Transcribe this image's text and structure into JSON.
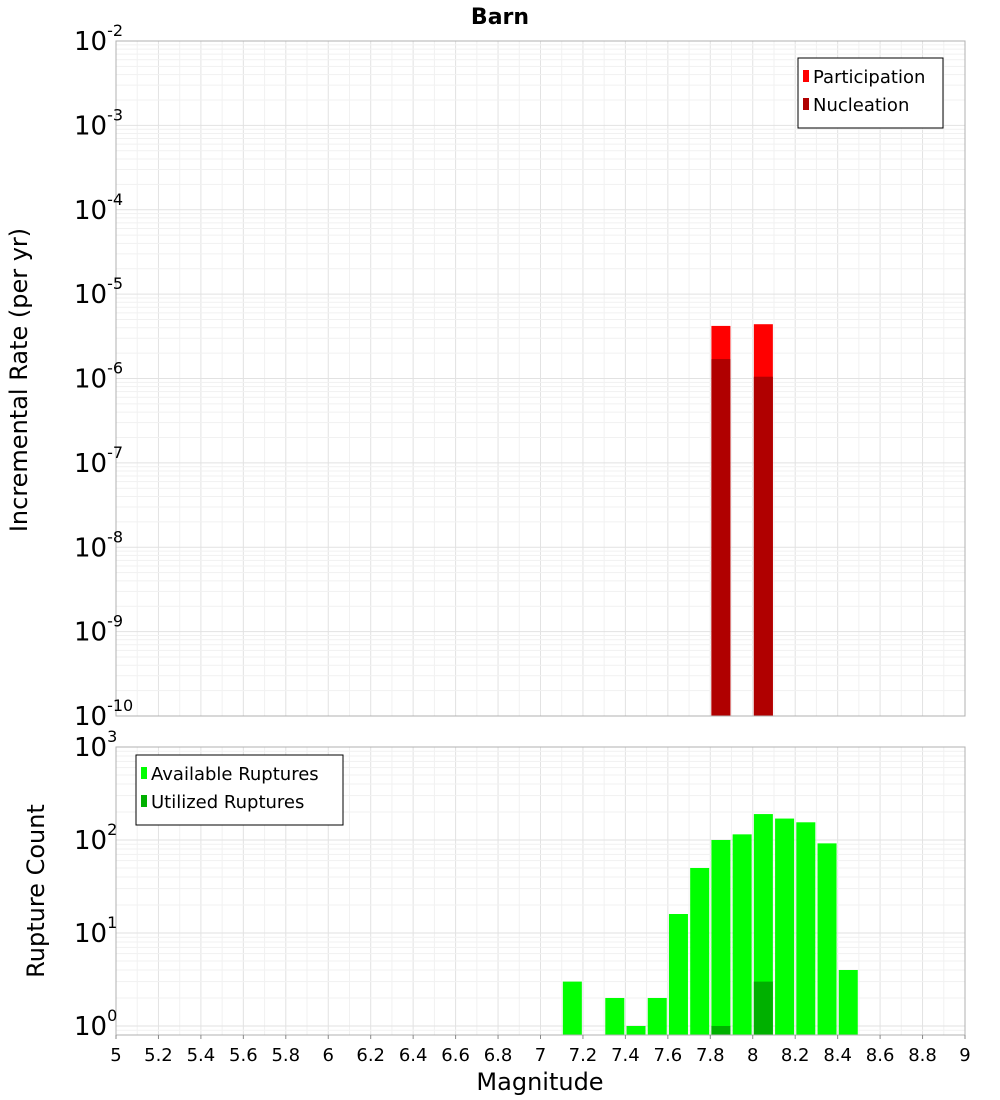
{
  "chart_data": [
    {
      "type": "bar",
      "title": "Barn",
      "xlabel": "",
      "ylabel": "Incremental Rate (per yr)",
      "yscale": "log",
      "ylim": [
        1e-10,
        0.01
      ],
      "xlim": [
        5,
        9
      ],
      "grid": true,
      "legend_position": "top-right",
      "y_ticks": [
        {
          "base": "10",
          "exp": "-10",
          "value": 1e-10
        },
        {
          "base": "10",
          "exp": "-9",
          "value": 1e-09
        },
        {
          "base": "10",
          "exp": "-8",
          "value": 1e-08
        },
        {
          "base": "10",
          "exp": "-7",
          "value": 1e-07
        },
        {
          "base": "10",
          "exp": "-6",
          "value": 1e-06
        },
        {
          "base": "10",
          "exp": "-5",
          "value": 1e-05
        },
        {
          "base": "10",
          "exp": "-4",
          "value": 0.0001
        },
        {
          "base": "10",
          "exp": "-3",
          "value": 0.001
        },
        {
          "base": "10",
          "exp": "-2",
          "value": 0.01
        }
      ],
      "series": [
        {
          "name": "Participation",
          "color": "#ff0000",
          "x": [
            7.85,
            8.05
          ],
          "values": [
            4.2e-06,
            4.4e-06
          ]
        },
        {
          "name": "Nucleation",
          "color": "#b00000",
          "x": [
            7.85,
            8.05
          ],
          "values": [
            1.7e-06,
            1.05e-06
          ]
        }
      ]
    },
    {
      "type": "bar",
      "title": "",
      "xlabel": "Magnitude",
      "ylabel": "Rupture Count",
      "yscale": "log",
      "ylim": [
        0.8,
        1000
      ],
      "xlim": [
        5,
        9
      ],
      "grid": true,
      "legend_position": "top-left",
      "x_ticks": [
        "5",
        "5.2",
        "5.4",
        "5.6",
        "5.8",
        "6",
        "6.2",
        "6.4",
        "6.6",
        "6.8",
        "7",
        "7.2",
        "7.4",
        "7.6",
        "7.8",
        "8",
        "8.2",
        "8.4",
        "8.6",
        "8.8",
        "9"
      ],
      "y_ticks": [
        {
          "base": "10",
          "exp": "0",
          "value": 1
        },
        {
          "base": "10",
          "exp": "1",
          "value": 10
        },
        {
          "base": "10",
          "exp": "2",
          "value": 100
        },
        {
          "base": "10",
          "exp": "3",
          "value": 1000
        }
      ],
      "series": [
        {
          "name": "Available Ruptures",
          "color": "#00ff00",
          "x": [
            7.15,
            7.35,
            7.45,
            7.55,
            7.65,
            7.75,
            7.85,
            7.95,
            8.05,
            8.15,
            8.25,
            8.35,
            8.45
          ],
          "values": [
            3,
            2,
            1,
            2,
            16,
            50,
            100,
            115,
            190,
            170,
            155,
            92,
            4
          ]
        },
        {
          "name": "Utilized Ruptures",
          "color": "#00b000",
          "x": [
            7.85,
            8.05
          ],
          "values": [
            1,
            3
          ]
        }
      ]
    }
  ]
}
